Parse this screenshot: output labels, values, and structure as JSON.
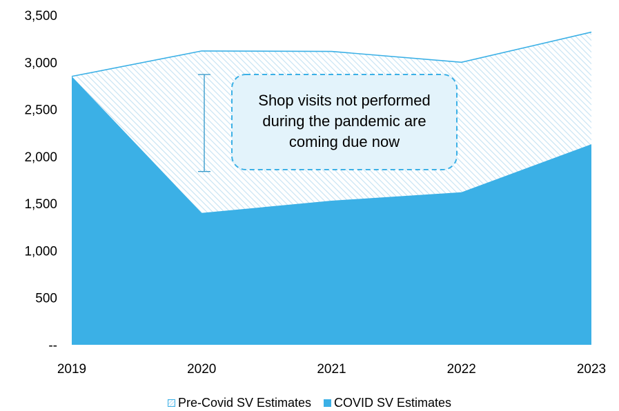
{
  "chart_data": {
    "type": "area",
    "x": [
      "2019",
      "2020",
      "2021",
      "2022",
      "2023"
    ],
    "series": [
      {
        "name": "Pre-Covid SV Estimates",
        "values": [
          2850,
          3120,
          3115,
          3000,
          3320
        ],
        "color": "#3bb0e6",
        "fill": "hatched"
      },
      {
        "name": "COVID SV Estimates",
        "values": [
          2850,
          1400,
          1530,
          1620,
          2130
        ],
        "color": "#3bb0e6",
        "fill": "solid"
      }
    ],
    "ylim": [
      0,
      3500
    ],
    "yticks": [
      0,
      500,
      1000,
      1500,
      2000,
      2500,
      3000,
      3500
    ],
    "ytick_labels": [
      "--",
      "500",
      "1,000",
      "1,500",
      "2,000",
      "2,500",
      "3,000",
      "3,500"
    ],
    "legend_position": "bottom",
    "annotation": {
      "lines": [
        "Shop visits not performed",
        "during the pandemic are",
        "coming due now"
      ],
      "bracket_range": [
        1840,
        2870
      ]
    }
  }
}
